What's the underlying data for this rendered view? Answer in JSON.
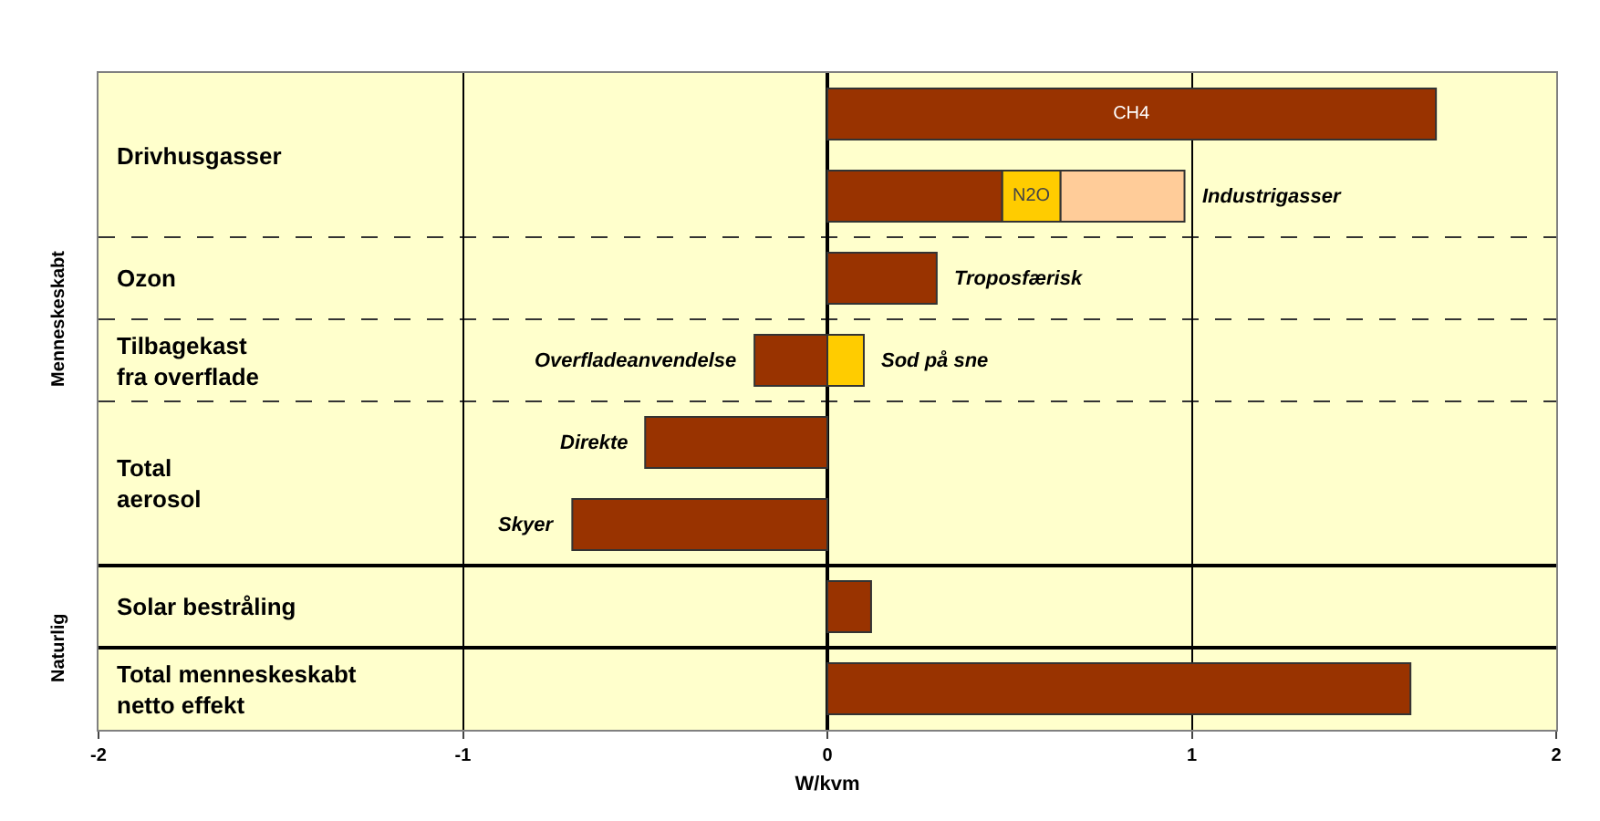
{
  "chart_data": {
    "type": "bar",
    "orientation": "horizontal",
    "stacked": true,
    "categories": [
      "Drivhusgasser",
      null,
      "Ozon",
      "Tilbagekast\nfra overflade",
      "Total\naerosol",
      null,
      "Solar bestråling",
      "Total menneskeskabt\nnetto effekt"
    ],
    "series": [
      {
        "color": "#993300",
        "values": [
          1.67,
          0.48,
          0.3,
          -0.2,
          -0.5,
          -0.7,
          0.12,
          1.6
        ],
        "value_labels": [
          "CH4",
          null,
          null,
          null,
          null,
          null,
          null,
          null
        ]
      },
      {
        "color": "#ffcc00",
        "values": [
          null,
          0.16,
          null,
          0.1,
          null,
          null,
          null,
          null
        ],
        "value_labels": [
          null,
          "N2O",
          null,
          null,
          null,
          null,
          null,
          null
        ]
      },
      {
        "color": "#ffcc99",
        "values": [
          null,
          0.34,
          null,
          null,
          null,
          null,
          null,
          null
        ]
      }
    ],
    "xlabel": "W/kvm",
    "xlim": [
      -2,
      2
    ],
    "xticks": [
      -2,
      -1,
      0,
      1,
      2
    ],
    "grid": "x",
    "annotations": [
      {
        "text": "Industrigasser",
        "x": 0.98
      },
      {
        "text": "Troposfærisk",
        "x": 0.3
      },
      {
        "text": "Overfladeanvendelse",
        "x": -0.2
      },
      {
        "text": "Sod på sne",
        "x": 0.1
      },
      {
        "text": "Direkte",
        "x": -0.5
      },
      {
        "text": "Skyer",
        "x": -0.7
      },
      "Menneskeskabt",
      "Naturlig"
    ]
  }
}
